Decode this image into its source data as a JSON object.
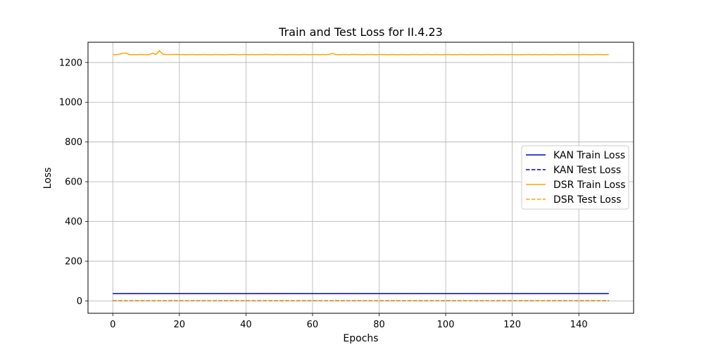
{
  "chart_data": {
    "type": "line",
    "title": "Train and Test Loss for II.4.23",
    "xlabel": "Epochs",
    "ylabel": "Loss",
    "xlim": [
      -7.45,
      156.45
    ],
    "ylim": [
      -62,
      1302
    ],
    "xticks": [
      0,
      20,
      40,
      60,
      80,
      100,
      120,
      140
    ],
    "yticks": [
      0,
      200,
      400,
      600,
      800,
      1000,
      1200
    ],
    "grid": true,
    "legend_position": "center-right",
    "series": [
      {
        "name": "KAN Train Loss",
        "color": "#0000cd",
        "linestyle": "solid",
        "x_start": 0,
        "x_end": 149,
        "values": [
          37
        ]
      },
      {
        "name": "KAN Test Loss",
        "color": "#0000cd",
        "linestyle": "dashed",
        "x_start": 0,
        "x_end": 149,
        "values": [
          1
        ]
      },
      {
        "name": "DSR Train Loss",
        "color": "#ffa500",
        "linestyle": "solid",
        "x_start": 0,
        "x_end": 149,
        "values": [
          1240,
          1239,
          1242,
          1247,
          1247,
          1240,
          1239,
          1239,
          1240,
          1240,
          1239,
          1240,
          1247,
          1240,
          1260,
          1242,
          1240,
          1240,
          1240,
          1241,
          1240,
          1240,
          1239,
          1240,
          1240,
          1239,
          1239,
          1240,
          1240,
          1239,
          1239,
          1240,
          1240,
          1239,
          1239,
          1240,
          1241,
          1240,
          1239,
          1240,
          1240,
          1239,
          1240,
          1239,
          1240,
          1240,
          1241,
          1240,
          1239,
          1240,
          1240,
          1240,
          1239,
          1240,
          1240,
          1240,
          1239,
          1240,
          1240,
          1239,
          1240,
          1240,
          1239,
          1240,
          1239,
          1241,
          1246,
          1240,
          1239,
          1240,
          1240,
          1239,
          1241,
          1240,
          1240,
          1239,
          1240,
          1240,
          1240,
          1239,
          1240,
          1240,
          1239,
          1239,
          1240,
          1239,
          1239,
          1240,
          1239,
          1239,
          1240,
          1240,
          1239,
          1239,
          1240,
          1240,
          1239,
          1240,
          1239,
          1239,
          1240,
          1240,
          1239,
          1239,
          1240,
          1240,
          1239,
          1239,
          1240,
          1240,
          1240,
          1239,
          1240,
          1240,
          1239,
          1240,
          1240,
          1240,
          1239,
          1239,
          1240,
          1239,
          1239,
          1239,
          1240,
          1240,
          1239,
          1240,
          1239,
          1240,
          1240,
          1239,
          1239,
          1240,
          1240,
          1239,
          1239,
          1240,
          1240,
          1240,
          1239,
          1240,
          1240,
          1239,
          1239,
          1240,
          1240,
          1239,
          1239,
          1240
        ]
      },
      {
        "name": "DSR Test Loss",
        "color": "#ffa500",
        "linestyle": "dashed",
        "x_start": 0,
        "x_end": 149,
        "values": [
          2
        ]
      }
    ]
  }
}
